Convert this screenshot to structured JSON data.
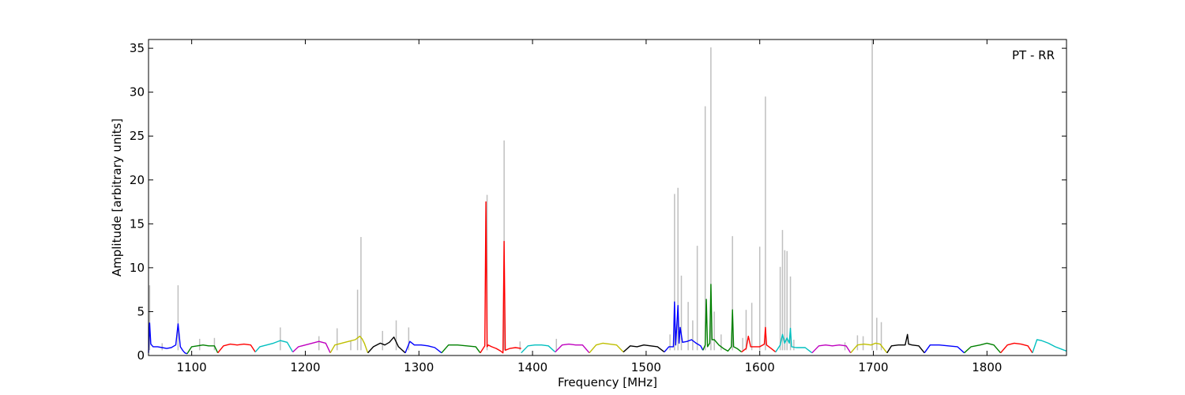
{
  "chart_data": {
    "type": "line",
    "xlabel": "Frequency [MHz]",
    "ylabel": "Amplitude [arbitrary units]",
    "annotation": "PT - RR",
    "xlim": [
      1062,
      1870
    ],
    "ylim": [
      0,
      36
    ],
    "x_ticks": [
      1100,
      1200,
      1300,
      1400,
      1500,
      1600,
      1700,
      1800
    ],
    "y_ticks": [
      0,
      5,
      10,
      15,
      20,
      25,
      30,
      35
    ],
    "grid": false,
    "background_series": {
      "color": "#bfbfbf",
      "spikes": [
        {
          "x": 1063,
          "y": 8.0
        },
        {
          "x": 1074,
          "y": 1.4
        },
        {
          "x": 1088,
          "y": 8.0
        },
        {
          "x": 1107,
          "y": 1.9
        },
        {
          "x": 1120,
          "y": 2.0
        },
        {
          "x": 1178,
          "y": 3.2
        },
        {
          "x": 1212,
          "y": 2.2
        },
        {
          "x": 1228,
          "y": 3.1
        },
        {
          "x": 1240,
          "y": 1.7
        },
        {
          "x": 1246,
          "y": 7.5
        },
        {
          "x": 1249,
          "y": 13.5
        },
        {
          "x": 1268,
          "y": 2.8
        },
        {
          "x": 1280,
          "y": 4.0
        },
        {
          "x": 1291,
          "y": 3.2
        },
        {
          "x": 1360,
          "y": 18.3
        },
        {
          "x": 1375,
          "y": 24.5
        },
        {
          "x": 1389,
          "y": 1.6
        },
        {
          "x": 1421,
          "y": 1.9
        },
        {
          "x": 1521,
          "y": 2.4
        },
        {
          "x": 1525,
          "y": 18.4
        },
        {
          "x": 1528,
          "y": 19.1
        },
        {
          "x": 1531,
          "y": 9.1
        },
        {
          "x": 1537,
          "y": 6.1
        },
        {
          "x": 1541,
          "y": 4.0
        },
        {
          "x": 1545,
          "y": 12.5
        },
        {
          "x": 1552,
          "y": 28.4
        },
        {
          "x": 1557,
          "y": 35.1
        },
        {
          "x": 1560,
          "y": 5.0
        },
        {
          "x": 1566,
          "y": 2.4
        },
        {
          "x": 1576,
          "y": 13.6
        },
        {
          "x": 1585,
          "y": 2.0
        },
        {
          "x": 1588,
          "y": 5.2
        },
        {
          "x": 1593,
          "y": 6.0
        },
        {
          "x": 1600,
          "y": 12.4
        },
        {
          "x": 1605,
          "y": 29.5
        },
        {
          "x": 1618,
          "y": 10.1
        },
        {
          "x": 1620,
          "y": 14.3
        },
        {
          "x": 1622,
          "y": 12.0
        },
        {
          "x": 1624,
          "y": 11.9
        },
        {
          "x": 1627,
          "y": 9.0
        },
        {
          "x": 1630,
          "y": 1.8
        },
        {
          "x": 1675,
          "y": 1.5
        },
        {
          "x": 1686,
          "y": 2.3
        },
        {
          "x": 1691,
          "y": 2.2
        },
        {
          "x": 1699,
          "y": 36.0
        },
        {
          "x": 1703,
          "y": 4.3
        },
        {
          "x": 1707,
          "y": 3.8
        }
      ]
    },
    "series": [
      {
        "color": "#0000ff",
        "x": [
          1062,
          1063,
          1064,
          1066,
          1070,
          1074,
          1078,
          1082,
          1086,
          1088,
          1090,
          1092,
          1094,
          1096
        ],
        "y": [
          0.3,
          3.7,
          1.3,
          1.0,
          1.0,
          0.9,
          0.8,
          0.9,
          1.2,
          3.6,
          1.0,
          0.6,
          0.3,
          0.2
        ]
      },
      {
        "color": "#008000",
        "x": [
          1096,
          1100,
          1105,
          1110,
          1115,
          1120,
          1123
        ],
        "y": [
          0.2,
          1.0,
          1.1,
          1.2,
          1.1,
          1.1,
          0.3
        ]
      },
      {
        "color": "#ff0000",
        "x": [
          1123,
          1128,
          1134,
          1140,
          1146,
          1152,
          1156
        ],
        "y": [
          0.3,
          1.1,
          1.3,
          1.2,
          1.3,
          1.2,
          0.4
        ]
      },
      {
        "color": "#00bfbf",
        "x": [
          1156,
          1160,
          1166,
          1172,
          1178,
          1184,
          1189
        ],
        "y": [
          0.4,
          1.0,
          1.2,
          1.4,
          1.7,
          1.5,
          0.4
        ]
      },
      {
        "color": "#bf00bf",
        "x": [
          1189,
          1194,
          1200,
          1206,
          1212,
          1218,
          1222
        ],
        "y": [
          0.4,
          1.0,
          1.2,
          1.4,
          1.6,
          1.4,
          0.3
        ]
      },
      {
        "color": "#bfbf00",
        "x": [
          1222,
          1226,
          1232,
          1238,
          1244,
          1248,
          1250,
          1252,
          1255
        ],
        "y": [
          0.3,
          1.2,
          1.4,
          1.6,
          1.8,
          2.2,
          1.9,
          1.4,
          0.3
        ]
      },
      {
        "color": "#000000",
        "x": [
          1255,
          1260,
          1266,
          1270,
          1274,
          1278,
          1282,
          1288
        ],
        "y": [
          0.3,
          1.0,
          1.4,
          1.2,
          1.5,
          2.1,
          1.0,
          0.3
        ]
      },
      {
        "color": "#0000ff",
        "x": [
          1288,
          1292,
          1296,
          1302,
          1308,
          1314,
          1320
        ],
        "y": [
          0.3,
          1.6,
          1.2,
          1.2,
          1.1,
          0.9,
          0.3
        ]
      },
      {
        "color": "#008000",
        "x": [
          1320,
          1326,
          1334,
          1342,
          1350,
          1354
        ],
        "y": [
          0.3,
          1.2,
          1.2,
          1.1,
          1.0,
          0.3
        ]
      },
      {
        "color": "#ff0000",
        "x": [
          1354,
          1358,
          1359,
          1360,
          1361,
          1364,
          1368,
          1372,
          1374,
          1375,
          1376,
          1380,
          1385,
          1390
        ],
        "y": [
          0.3,
          1.1,
          17.5,
          1.0,
          1.2,
          1.0,
          0.8,
          0.5,
          0.3,
          13.0,
          0.6,
          0.8,
          0.9,
          0.8
        ]
      },
      {
        "color": "#00bfbf",
        "x": [
          1390,
          1396,
          1402,
          1408,
          1414,
          1420
        ],
        "y": [
          0.3,
          1.1,
          1.2,
          1.2,
          1.1,
          0.4
        ]
      },
      {
        "color": "#bf00bf",
        "x": [
          1420,
          1426,
          1432,
          1438,
          1444,
          1450
        ],
        "y": [
          0.4,
          1.2,
          1.3,
          1.2,
          1.2,
          0.3
        ]
      },
      {
        "color": "#bfbf00",
        "x": [
          1450,
          1456,
          1462,
          1468,
          1474,
          1480
        ],
        "y": [
          0.3,
          1.2,
          1.4,
          1.3,
          1.2,
          0.4
        ]
      },
      {
        "color": "#000000",
        "x": [
          1480,
          1486,
          1492,
          1498,
          1504,
          1510,
          1516
        ],
        "y": [
          0.4,
          1.1,
          1.0,
          1.2,
          1.1,
          1.0,
          0.4
        ]
      },
      {
        "color": "#0000ff",
        "x": [
          1516,
          1520,
          1524,
          1525,
          1526,
          1528,
          1529,
          1530,
          1532,
          1536,
          1540,
          1544,
          1548,
          1550
        ],
        "y": [
          0.4,
          1.0,
          1.0,
          6.1,
          1.2,
          5.7,
          1.4,
          3.2,
          1.5,
          1.6,
          1.8,
          1.4,
          1.1,
          0.6
        ]
      },
      {
        "color": "#008000",
        "x": [
          1550,
          1552,
          1553,
          1554,
          1556,
          1557,
          1558,
          1560,
          1564,
          1568,
          1572,
          1575,
          1576,
          1577,
          1580,
          1584
        ],
        "y": [
          0.6,
          1.2,
          6.4,
          1.0,
          1.4,
          8.1,
          1.8,
          1.8,
          1.2,
          0.8,
          0.5,
          1.0,
          5.2,
          1.0,
          0.8,
          0.4
        ]
      },
      {
        "color": "#ff0000",
        "x": [
          1584,
          1588,
          1590,
          1592,
          1596,
          1600,
          1604,
          1605,
          1606,
          1610,
          1614
        ],
        "y": [
          0.4,
          0.8,
          2.2,
          1.0,
          1.0,
          1.0,
          1.3,
          3.2,
          1.2,
          0.8,
          0.4
        ]
      },
      {
        "color": "#00bfbf",
        "x": [
          1614,
          1618,
          1620,
          1622,
          1624,
          1626,
          1627,
          1628,
          1632,
          1640,
          1646
        ],
        "y": [
          0.4,
          1.2,
          2.4,
          1.4,
          2.0,
          1.4,
          3.1,
          1.0,
          0.9,
          0.9,
          0.3
        ]
      },
      {
        "color": "#bf00bf",
        "x": [
          1646,
          1652,
          1658,
          1664,
          1670,
          1676,
          1680
        ],
        "y": [
          0.3,
          1.1,
          1.2,
          1.1,
          1.2,
          1.1,
          0.3
        ]
      },
      {
        "color": "#bfbf00",
        "x": [
          1680,
          1686,
          1692,
          1698,
          1702,
          1706,
          1712
        ],
        "y": [
          0.3,
          1.2,
          1.3,
          1.2,
          1.4,
          1.3,
          0.3
        ]
      },
      {
        "color": "#000000",
        "x": [
          1712,
          1716,
          1722,
          1728,
          1730,
          1731,
          1734,
          1740,
          1745
        ],
        "y": [
          0.3,
          1.1,
          1.2,
          1.2,
          2.4,
          1.3,
          1.2,
          1.1,
          0.3
        ]
      },
      {
        "color": "#0000ff",
        "x": [
          1745,
          1750,
          1758,
          1766,
          1774,
          1780
        ],
        "y": [
          0.3,
          1.2,
          1.2,
          1.1,
          1.0,
          0.3
        ]
      },
      {
        "color": "#008000",
        "x": [
          1780,
          1786,
          1794,
          1800,
          1806,
          1812
        ],
        "y": [
          0.3,
          1.0,
          1.2,
          1.4,
          1.2,
          0.3
        ]
      },
      {
        "color": "#ff0000",
        "x": [
          1812,
          1818,
          1824,
          1830,
          1836,
          1840
        ],
        "y": [
          0.3,
          1.2,
          1.4,
          1.3,
          1.1,
          0.3
        ]
      },
      {
        "color": "#00bfbf",
        "x": [
          1840,
          1844,
          1848,
          1854,
          1860,
          1866,
          1870
        ],
        "y": [
          0.3,
          1.8,
          1.7,
          1.4,
          1.0,
          0.7,
          0.5
        ]
      }
    ]
  }
}
